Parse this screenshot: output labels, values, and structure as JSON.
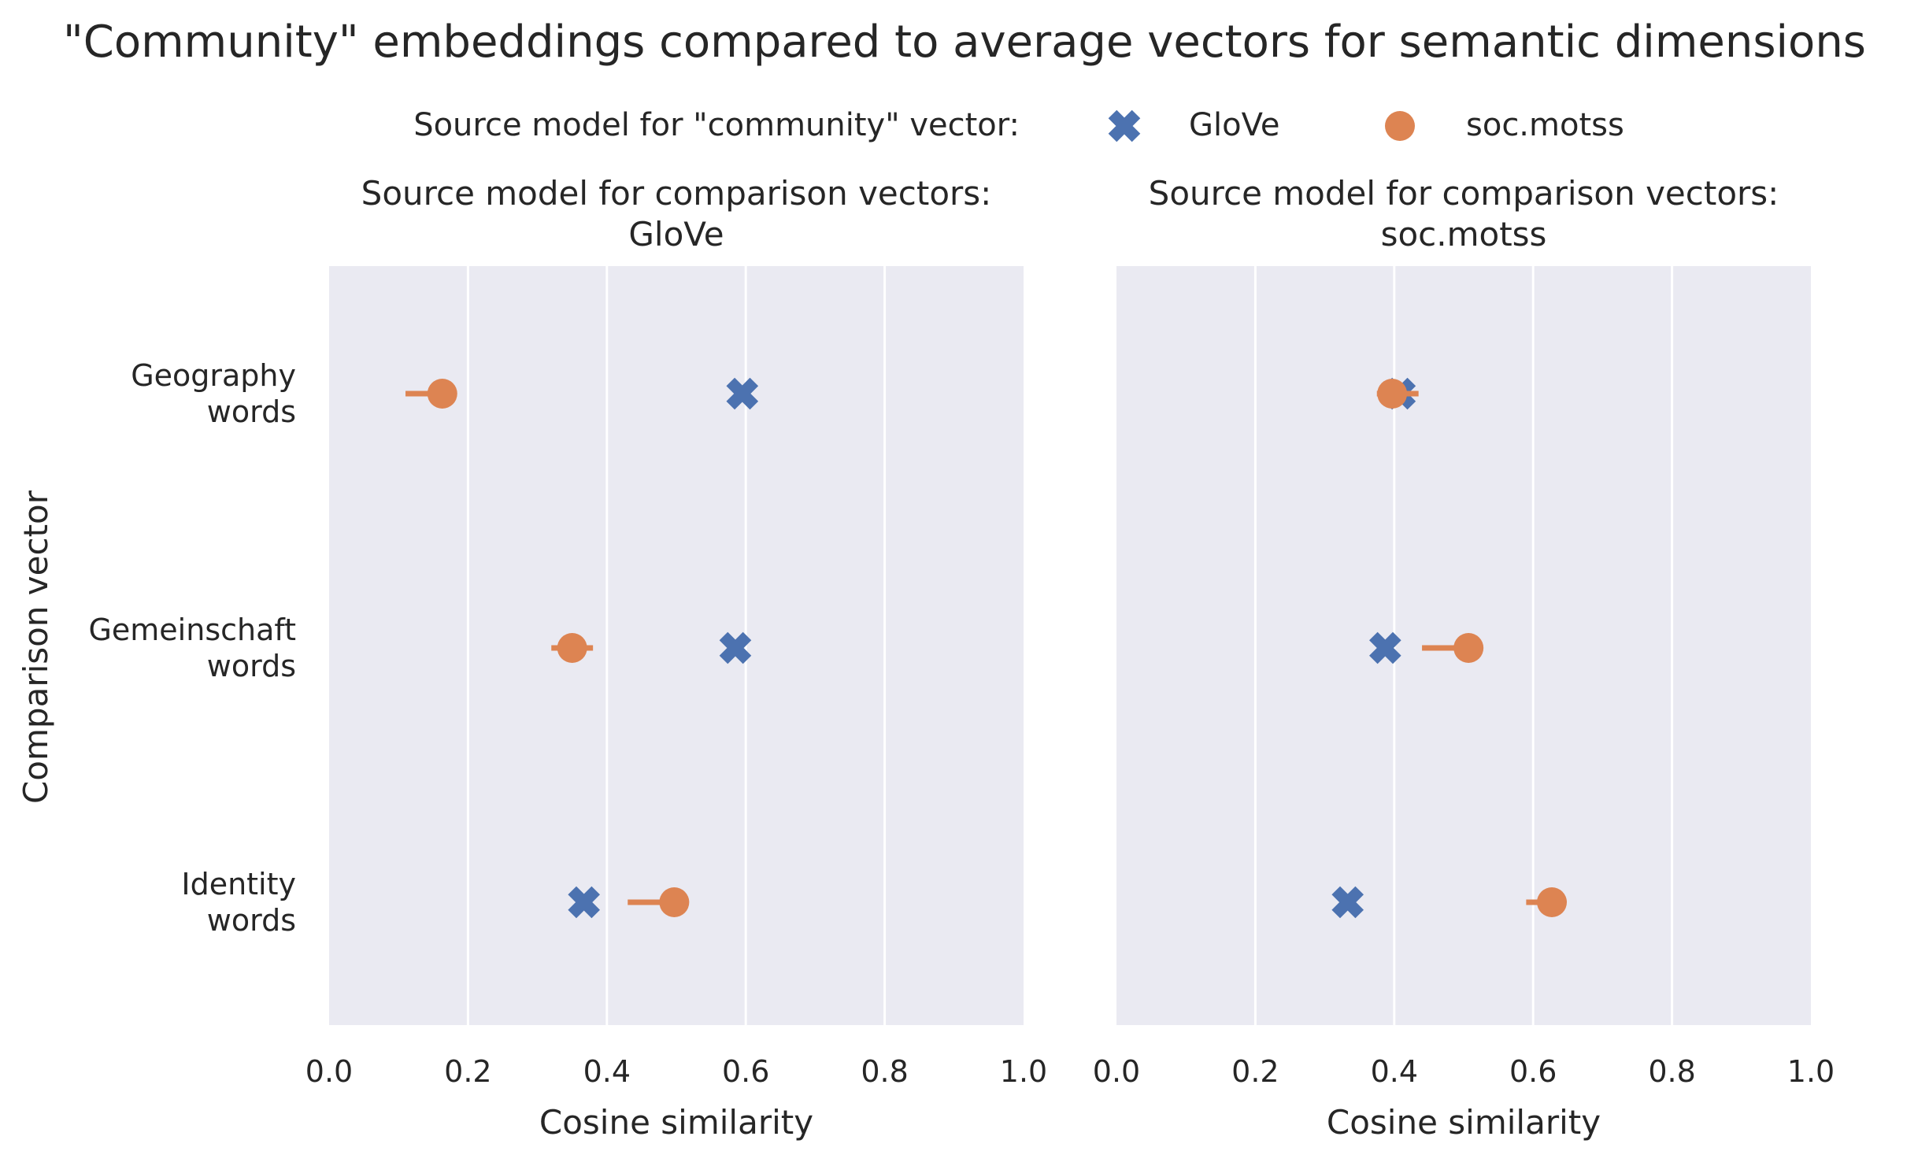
{
  "chart_data": {
    "type": "scatter",
    "title": "\"Community\" embeddings compared to average vectors for semantic dimensions",
    "legend": {
      "title": "Source model for \"community\" vector:",
      "placement": "top-center",
      "entries": [
        {
          "name": "GloVe",
          "marker": "x",
          "color": "#4c72b0"
        },
        {
          "name": "soc.motss",
          "marker": "circle",
          "color": "#dd8452"
        }
      ]
    },
    "ylabel": "Comparison vector",
    "categories": [
      "Geography\nwords",
      "Gemeinschaft\nwords",
      "Identity\nwords"
    ],
    "xlim": [
      0.0,
      1.0
    ],
    "xticks": [
      "0.0",
      "0.2",
      "0.4",
      "0.6",
      "0.8",
      "1.0"
    ],
    "grid": true,
    "panels": [
      {
        "title_line1": "Source model for comparison vectors:",
        "title_line2": "GloVe",
        "xlabel": "Cosine similarity",
        "series": [
          {
            "name": "GloVe",
            "values": [
              0.595,
              0.585,
              0.367
            ],
            "ci": [
              [
                0.59,
                0.6
              ],
              [
                0.58,
                0.59
              ],
              [
                0.36,
                0.375
              ]
            ]
          },
          {
            "name": "soc.motss",
            "values": [
              0.163,
              0.35,
              0.497
            ],
            "ci": [
              [
                0.11,
                0.175
              ],
              [
                0.32,
                0.38
              ],
              [
                0.43,
                0.5
              ]
            ]
          }
        ]
      },
      {
        "title_line1": "Source model for comparison vectors:",
        "title_line2": "soc.motss",
        "xlabel": "Cosine similarity",
        "series": [
          {
            "name": "GloVe",
            "values": [
              0.408,
              0.387,
              0.333
            ],
            "ci": [
              [
                0.4,
                0.415
              ],
              [
                0.38,
                0.395
              ],
              [
                0.325,
                0.34
              ]
            ]
          },
          {
            "name": "soc.motss",
            "values": [
              0.397,
              0.507,
              0.627
            ],
            "ci": [
              [
                0.375,
                0.435
              ],
              [
                0.44,
                0.51
              ],
              [
                0.59,
                0.63
              ]
            ]
          }
        ]
      }
    ]
  }
}
